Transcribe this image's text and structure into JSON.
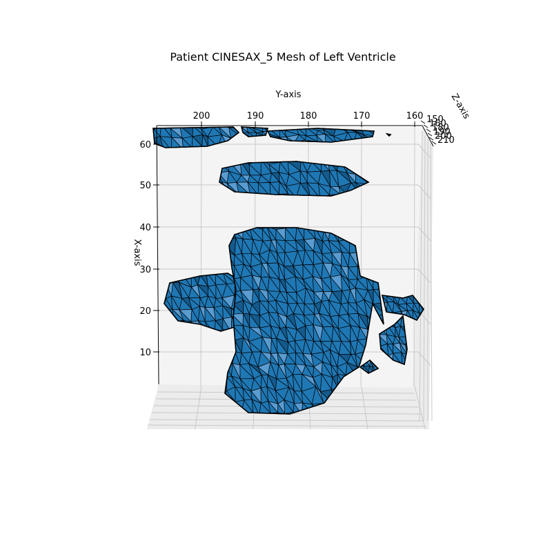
{
  "chart_data": {
    "type": "3d-mesh",
    "title": "Patient CINESAX_5 Mesh of Left Ventricle",
    "xlabel": "X-axis",
    "ylabel": "Y-axis",
    "zlabel": "Z-axis",
    "y_ticks": [
      "200",
      "190",
      "180",
      "170",
      "160"
    ],
    "x_ticks": [
      "10",
      "20",
      "30",
      "40",
      "50",
      "60"
    ],
    "z_ticks": [
      "150",
      "160",
      "180",
      "190",
      "200",
      "210"
    ],
    "grid": true,
    "colors": {
      "mesh_fill": "#1f77b4",
      "mesh_edge": "#000000",
      "pane": "#f2f2f2",
      "grid": "#c8c8c8"
    }
  }
}
